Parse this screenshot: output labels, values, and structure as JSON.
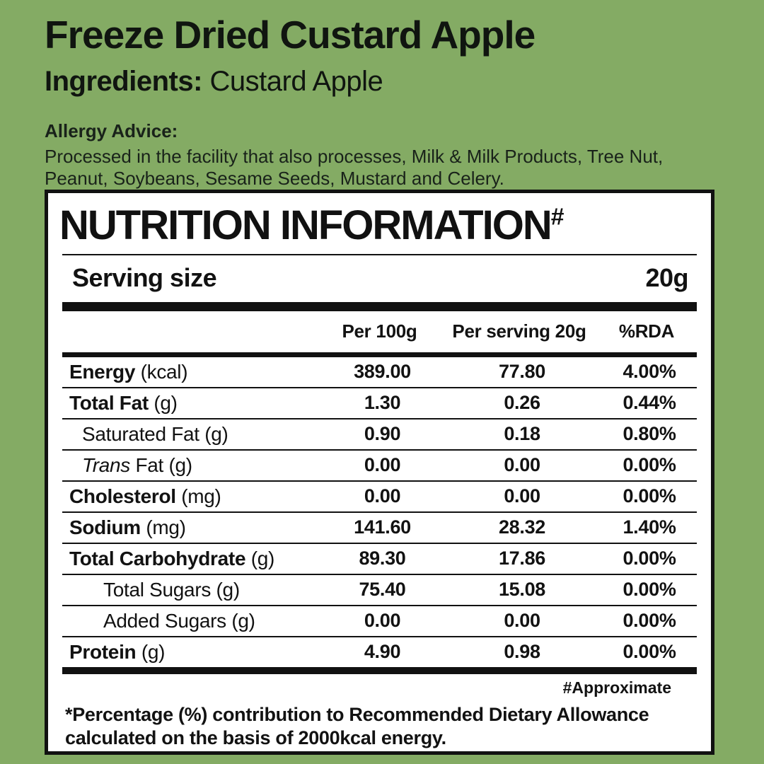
{
  "colors": {
    "background": "#84ab64",
    "panel_bg": "#ffffff",
    "ink": "#111111"
  },
  "header": {
    "title": "Freeze Dried Custard Apple",
    "ingredients_label": "Ingredients:",
    "ingredients_value": "Custard Apple",
    "allergy_heading": "Allergy Advice:",
    "allergy_body": "Processed in the facility that also processes, Milk & Milk Products, Tree Nut, Peanut, Soybeans, Sesame Seeds, Mustard and Celery."
  },
  "nutrition": {
    "title": "NUTRITION INFORMATION",
    "title_mark": "#",
    "serving_label": "Serving size",
    "serving_value": "20g",
    "columns": [
      "Per 100g",
      "Per serving 20g",
      "%RDA"
    ],
    "rows": [
      {
        "bold": "Energy",
        "plain": "(kcal)",
        "indent": 0,
        "per100": "389.00",
        "serving": "77.80",
        "rda": "4.00%"
      },
      {
        "bold": "Total Fat",
        "plain": "(g)",
        "indent": 0,
        "per100": "1.30",
        "serving": "0.26",
        "rda": "0.44%"
      },
      {
        "plain": "Saturated Fat (g)",
        "indent": 1,
        "per100": "0.90",
        "serving": "0.18",
        "rda": "0.80%"
      },
      {
        "italic": "Trans",
        "plain": "Fat (g)",
        "indent": 1,
        "per100": "0.00",
        "serving": "0.00",
        "rda": "0.00%"
      },
      {
        "bold": "Cholesterol",
        "plain": "(mg)",
        "indent": 0,
        "per100": "0.00",
        "serving": "0.00",
        "rda": "0.00%"
      },
      {
        "bold": "Sodium",
        "plain": "(mg)",
        "indent": 0,
        "per100": "141.60",
        "serving": "28.32",
        "rda": "1.40%"
      },
      {
        "bold": "Total Carbohydrate",
        "plain": "(g)",
        "indent": 0,
        "per100": "89.30",
        "serving": "17.86",
        "rda": "0.00%"
      },
      {
        "plain": "Total Sugars (g)",
        "indent": 2,
        "per100": "75.40",
        "serving": "15.08",
        "rda": "0.00%"
      },
      {
        "plain": "Added Sugars (g)",
        "indent": 2,
        "per100": "0.00",
        "serving": "0.00",
        "rda": "0.00%"
      },
      {
        "bold": "Protein",
        "plain": "(g)",
        "indent": 0,
        "per100": "4.90",
        "serving": "0.98",
        "rda": "0.00%"
      }
    ],
    "approx_note": "#Approximate",
    "footnote": "*Percentage (%) contribution to Recommended Dietary Allowance calculated on the basis of 2000kcal energy."
  }
}
